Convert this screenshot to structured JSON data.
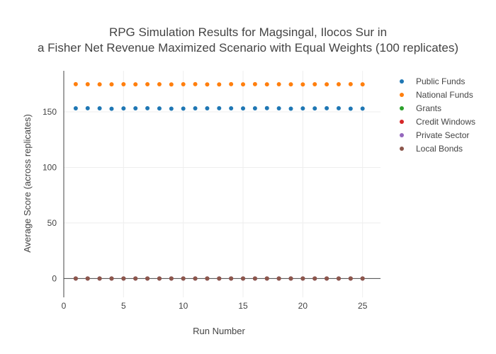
{
  "chart_data": {
    "type": "scatter",
    "title_line1": "RPG Simulation Results for Magsingal, Ilocos Sur in",
    "title_line2": "a Fisher Net Revenue Maximized Scenario with Equal Weights (100 replicates)",
    "xlabel": "Run Number",
    "ylabel": "Average Score (across replicates)",
    "xlim": [
      0,
      26.5
    ],
    "ylim": [
      -17,
      187
    ],
    "xticks": [
      0,
      5,
      10,
      15,
      20,
      25
    ],
    "yticks": [
      0,
      50,
      100,
      150
    ],
    "grid": true,
    "legend_position": "top-right",
    "x": [
      1,
      2,
      3,
      4,
      5,
      6,
      7,
      8,
      9,
      10,
      11,
      12,
      13,
      14,
      15,
      16,
      17,
      18,
      19,
      20,
      21,
      22,
      23,
      24,
      25
    ],
    "series": [
      {
        "name": "Public Funds",
        "color": "#1f77b4",
        "values": [
          153.2,
          153.3,
          153.2,
          152.8,
          153.1,
          153.2,
          153.3,
          153.1,
          152.9,
          153.0,
          153.2,
          153.2,
          153.3,
          153.2,
          153.1,
          153.2,
          153.4,
          153.2,
          152.9,
          153.1,
          153.1,
          153.3,
          153.3,
          152.9,
          153.0
        ]
      },
      {
        "name": "National Funds",
        "color": "#ff7f0e",
        "values": [
          175.0,
          174.9,
          174.8,
          174.8,
          174.9,
          174.8,
          174.9,
          174.9,
          174.7,
          174.9,
          175.0,
          174.7,
          174.7,
          175.0,
          174.8,
          175.0,
          174.8,
          174.9,
          174.8,
          174.7,
          174.9,
          174.8,
          174.9,
          175.0,
          174.8
        ]
      },
      {
        "name": "Grants",
        "color": "#2ca02c",
        "values": [
          0,
          0,
          0,
          0,
          0,
          0,
          0,
          0,
          0,
          0,
          0,
          0,
          0,
          0,
          0,
          0,
          0,
          0,
          0,
          0,
          0,
          0,
          0,
          0,
          0
        ]
      },
      {
        "name": "Credit Windows",
        "color": "#d62728",
        "values": [
          0,
          0,
          0,
          0,
          0,
          0,
          0,
          0,
          0,
          0,
          0,
          0,
          0,
          0,
          0,
          0,
          0,
          0,
          0,
          0,
          0,
          0,
          0,
          0,
          0
        ]
      },
      {
        "name": "Private Sector",
        "color": "#9467bd",
        "values": [
          0,
          0,
          0,
          0,
          0,
          0,
          0,
          0,
          0,
          0,
          0,
          0,
          0,
          0,
          0,
          0,
          0,
          0,
          0,
          0,
          0,
          0,
          0,
          0,
          0
        ]
      },
      {
        "name": "Local Bonds",
        "color": "#8c564b",
        "values": [
          0,
          0,
          0,
          0,
          0,
          0,
          0,
          0,
          0,
          0,
          0,
          0,
          0,
          0,
          0,
          0,
          0,
          0,
          0,
          0,
          0,
          0,
          0,
          0,
          0
        ]
      }
    ]
  }
}
